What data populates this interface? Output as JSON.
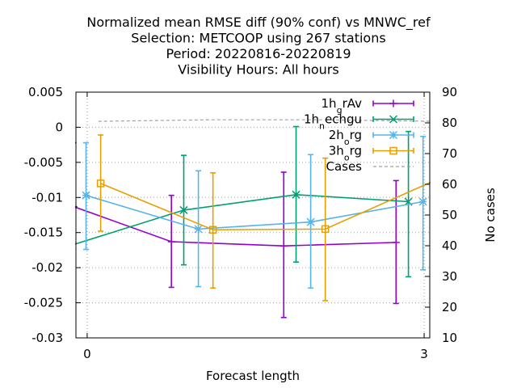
{
  "chart_data": {
    "type": "line",
    "title_lines": [
      "Normalized mean RMSE diff (90% conf) vs MNWC_ref",
      "Selection: METCOOP using   267 stations",
      "Period: 20220816-20220819",
      "Visibility   Hours:  All hours"
    ],
    "xlabel": "Forecast length",
    "ylabel_left": "",
    "ylabel_right": "No cases",
    "xlim": [
      -0.1,
      3.05
    ],
    "ylim_left": [
      -0.03,
      0.005
    ],
    "ylim_right": [
      10,
      90
    ],
    "xticks": [
      0,
      3
    ],
    "yticks_left": [
      0.005,
      0,
      -0.005,
      -0.01,
      -0.015,
      -0.02,
      -0.025,
      -0.03
    ],
    "yticks_right": [
      90,
      80,
      70,
      60,
      50,
      40,
      30,
      20,
      10
    ],
    "legend_position": "top-right",
    "grid": "dotted",
    "series": [
      {
        "name": "1h_grAv",
        "label_main": "1h",
        "label_sub": "g",
        "label_rest": "rAv",
        "color": "#9400d3",
        "marker": "plus",
        "axis": "left",
        "x": [
          -0.12,
          0.75,
          1.75,
          2.75
        ],
        "y": [
          -0.0113,
          -0.0163,
          -0.0169,
          -0.0164
        ],
        "err_low": [
          -0.0315,
          -0.0228,
          -0.0271,
          -0.0251
        ],
        "err_high": [
          -0.0022,
          -0.0097,
          -0.0064,
          -0.0076
        ]
      },
      {
        "name": "1h_nechgu",
        "label_main": "1h",
        "label_sub": "n",
        "label_rest": "echgu",
        "color": "#009e73",
        "marker": "cross",
        "axis": "left",
        "x": [
          -0.14,
          0.86,
          1.86,
          2.86
        ],
        "y": [
          -0.0168,
          -0.0118,
          -0.0096,
          -0.0106
        ],
        "err_low": [
          -0.0272,
          -0.0196,
          -0.0192,
          -0.0213
        ],
        "err_high": [
          -0.0064,
          -0.004,
          0.0001,
          -0.0006
        ]
      },
      {
        "name": "2h_org",
        "label_main": "2h",
        "label_sub": "o",
        "label_rest": "rg",
        "color": "#56b4e9",
        "marker": "star",
        "axis": "left",
        "x": [
          -0.01,
          0.99,
          1.99,
          2.99
        ],
        "y": [
          -0.0097,
          -0.0145,
          -0.0135,
          -0.0106
        ],
        "err_low": [
          -0.0174,
          -0.0227,
          -0.0229,
          -0.0203
        ],
        "err_high": [
          -0.0022,
          -0.0062,
          -0.0039,
          -0.0013
        ]
      },
      {
        "name": "3h_org",
        "label_main": "3h",
        "label_sub": "o",
        "label_rest": "rg",
        "color": "#e69f00",
        "marker": "square",
        "axis": "left",
        "x": [
          0.12,
          1.12,
          2.12,
          3.12
        ],
        "y": [
          -0.008,
          -0.0146,
          -0.0145,
          -0.0074
        ],
        "err_low": [
          -0.0148,
          -0.0229,
          -0.0247,
          -0.0156
        ],
        "err_high": [
          -0.0011,
          -0.0065,
          -0.0044,
          0.0023
        ]
      },
      {
        "name": "Cases",
        "label_main": "Cases",
        "label_sub": "",
        "label_rest": "",
        "color": "#a0a0a0",
        "marker": "none",
        "axis": "right",
        "dashed": true,
        "x": [
          0.1,
          1.1,
          2.1,
          3.1
        ],
        "y": [
          80.5,
          81,
          81,
          80.5
        ]
      }
    ]
  }
}
